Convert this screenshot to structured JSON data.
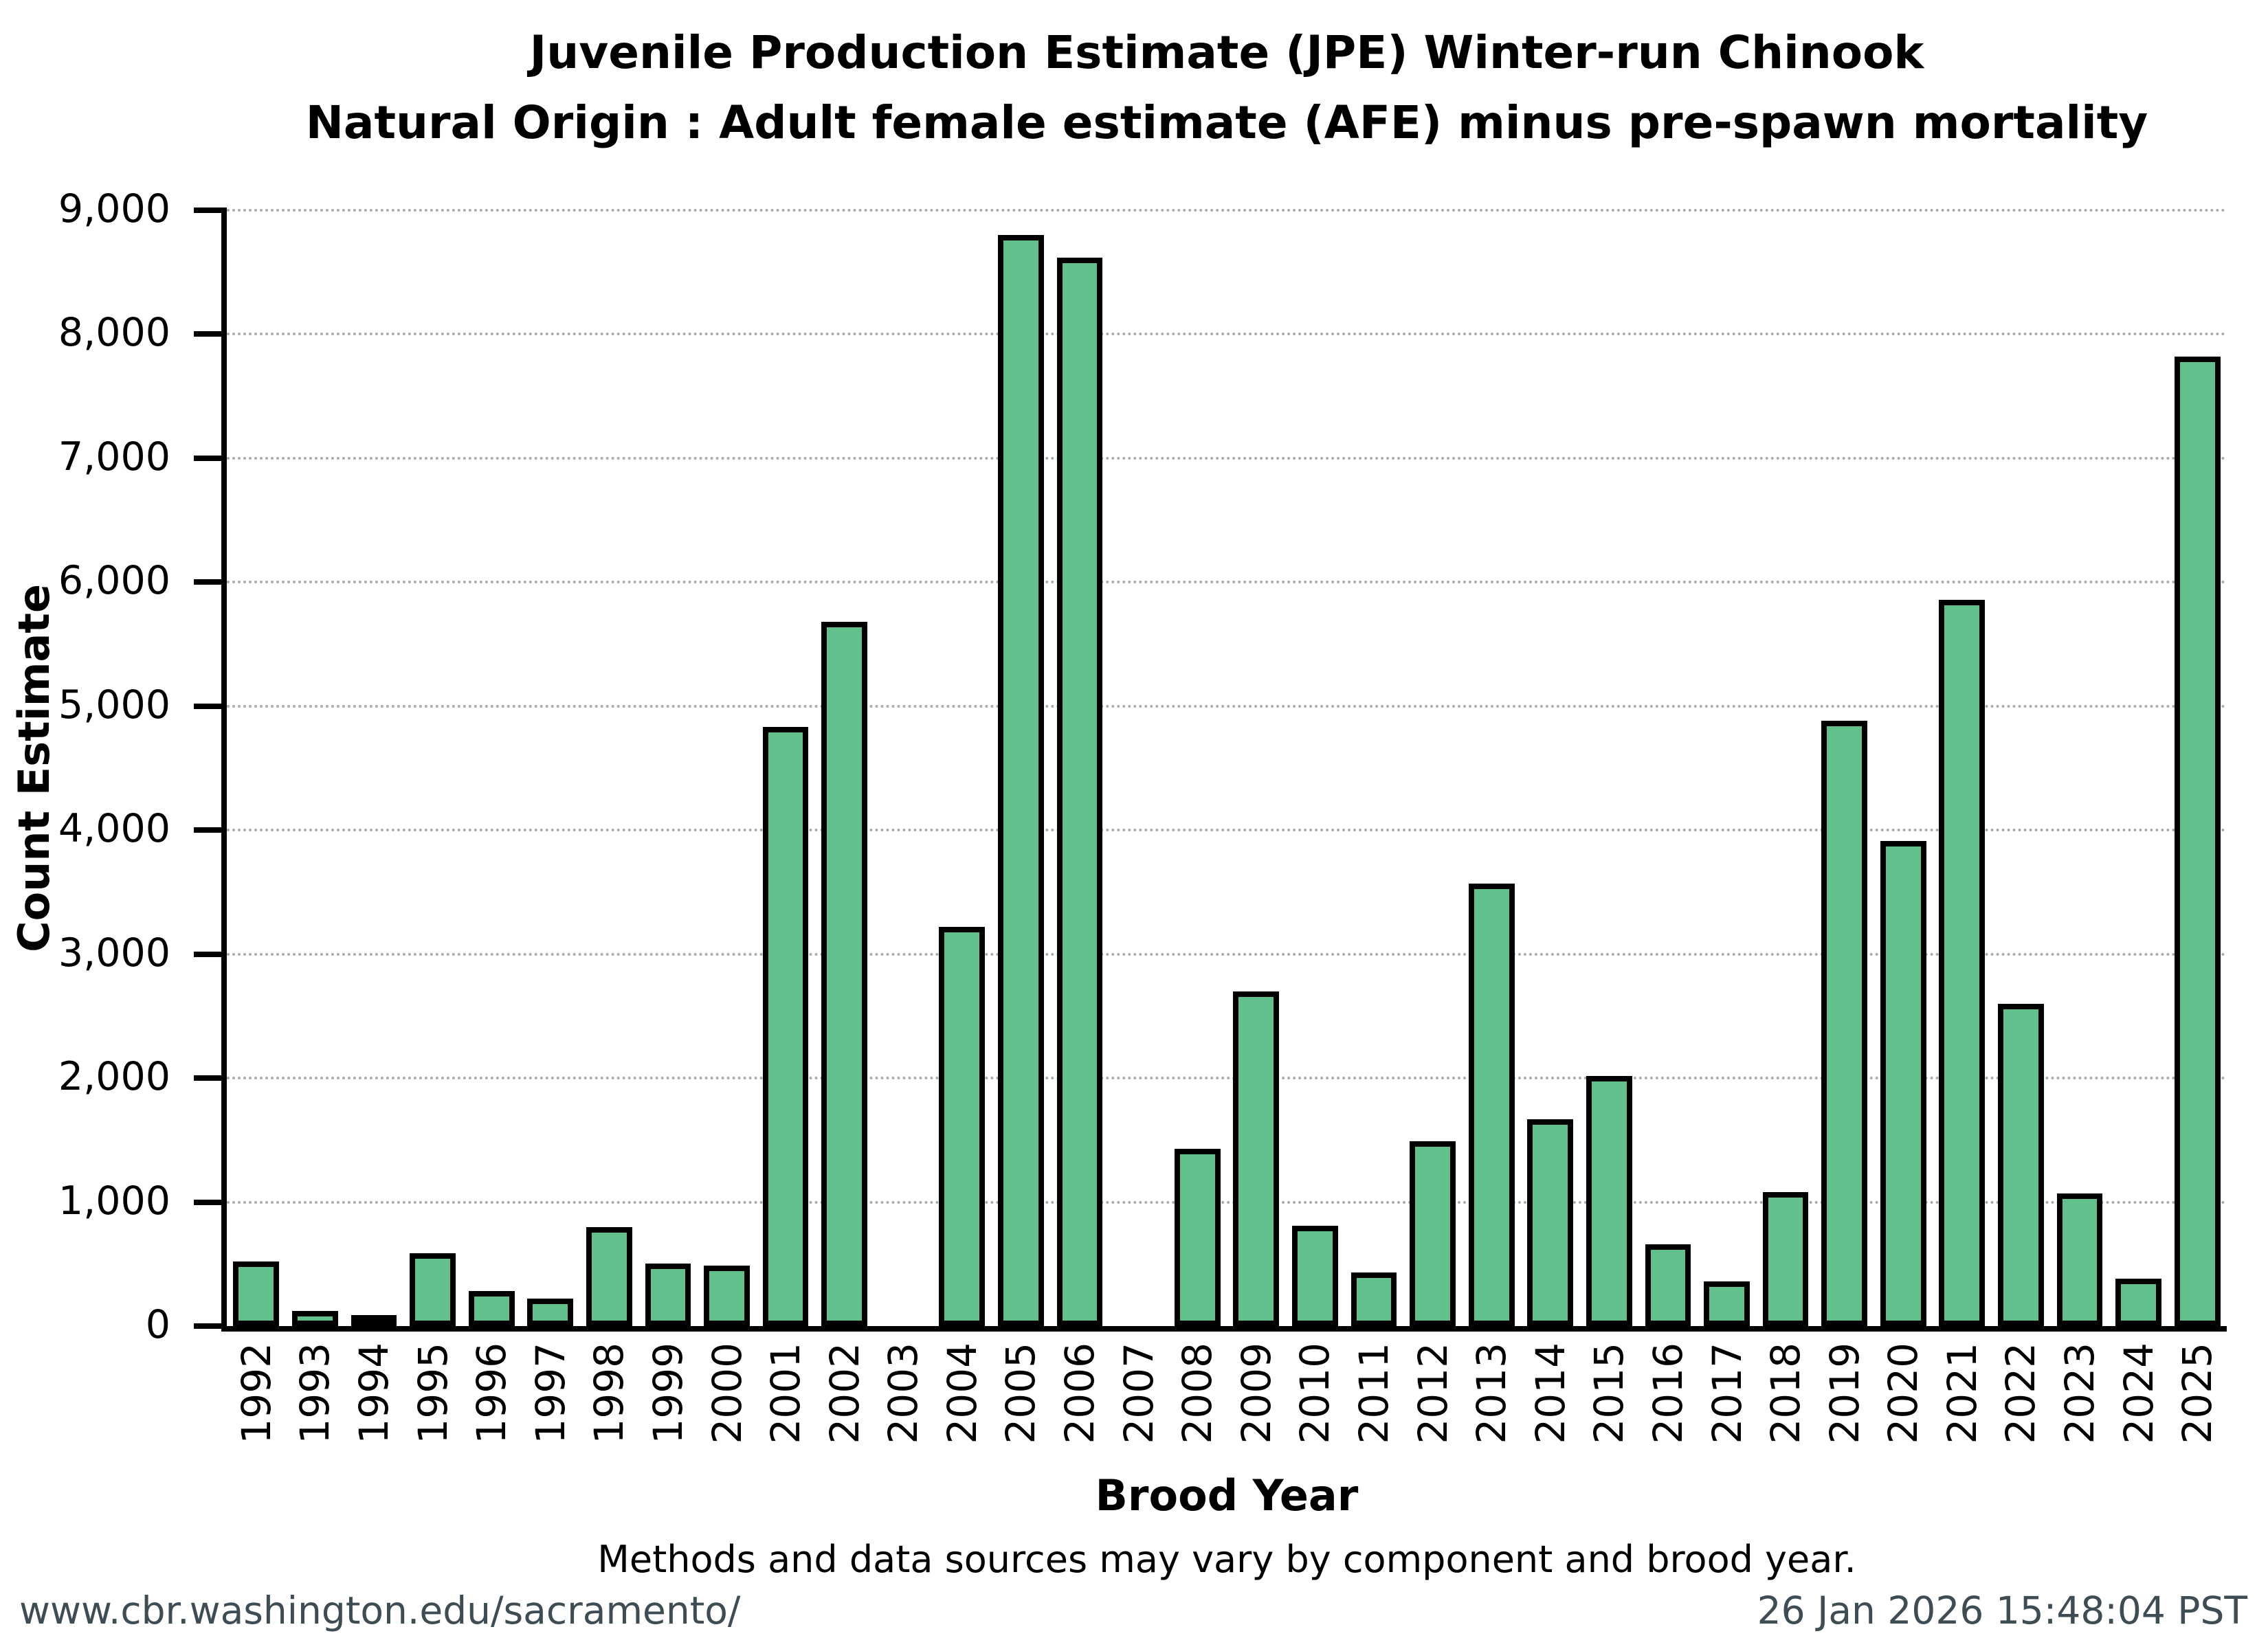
{
  "title": {
    "line1": "Juvenile Production Estimate (JPE) Winter-run Chinook",
    "line2": "Natural Origin : Adult female estimate (AFE) minus pre-spawn mortality"
  },
  "axes": {
    "y_label": "Count Estimate",
    "x_label": "Brood Year",
    "y_tick_labels": [
      "0",
      "1,000",
      "2,000",
      "3,000",
      "4,000",
      "5,000",
      "6,000",
      "7,000",
      "8,000",
      "9,000"
    ]
  },
  "note": "Methods and data sources may vary by component and brood year.",
  "footer": {
    "url": "www.cbr.washington.edu/sacramento/",
    "timestamp": "26 Jan 2026 15:48:04 PST"
  },
  "colors": {
    "bar_fill": "#61C08B",
    "bar_border": "#000000",
    "grid": "#8f8f8f",
    "footer_text": "#3E4C54"
  },
  "chart_data": {
    "type": "bar",
    "title": "Juvenile Production Estimate (JPE) Winter-run Chinook — Natural Origin : Adult female estimate (AFE) minus pre-spawn mortality",
    "xlabel": "Brood Year",
    "ylabel": "Count Estimate",
    "ylim": [
      0,
      9000
    ],
    "ytick_interval": 1000,
    "grid": "horizontal-dotted",
    "legend": "none",
    "categories": [
      1992,
      1993,
      1994,
      1995,
      1996,
      1997,
      1998,
      1999,
      2000,
      2001,
      2002,
      2003,
      2004,
      2005,
      2006,
      2007,
      2008,
      2009,
      2010,
      2011,
      2012,
      2013,
      2014,
      2015,
      2016,
      2017,
      2018,
      2019,
      2020,
      2021,
      2022,
      2023,
      2024,
      2025
    ],
    "values": [
      520,
      120,
      60,
      590,
      280,
      220,
      800,
      505,
      490,
      4830,
      5680,
      0,
      3220,
      8800,
      8620,
      0,
      1430,
      2700,
      810,
      430,
      1490,
      3570,
      1670,
      2020,
      660,
      360,
      1080,
      4880,
      3910,
      5860,
      2600,
      1070,
      380,
      7820
    ]
  }
}
